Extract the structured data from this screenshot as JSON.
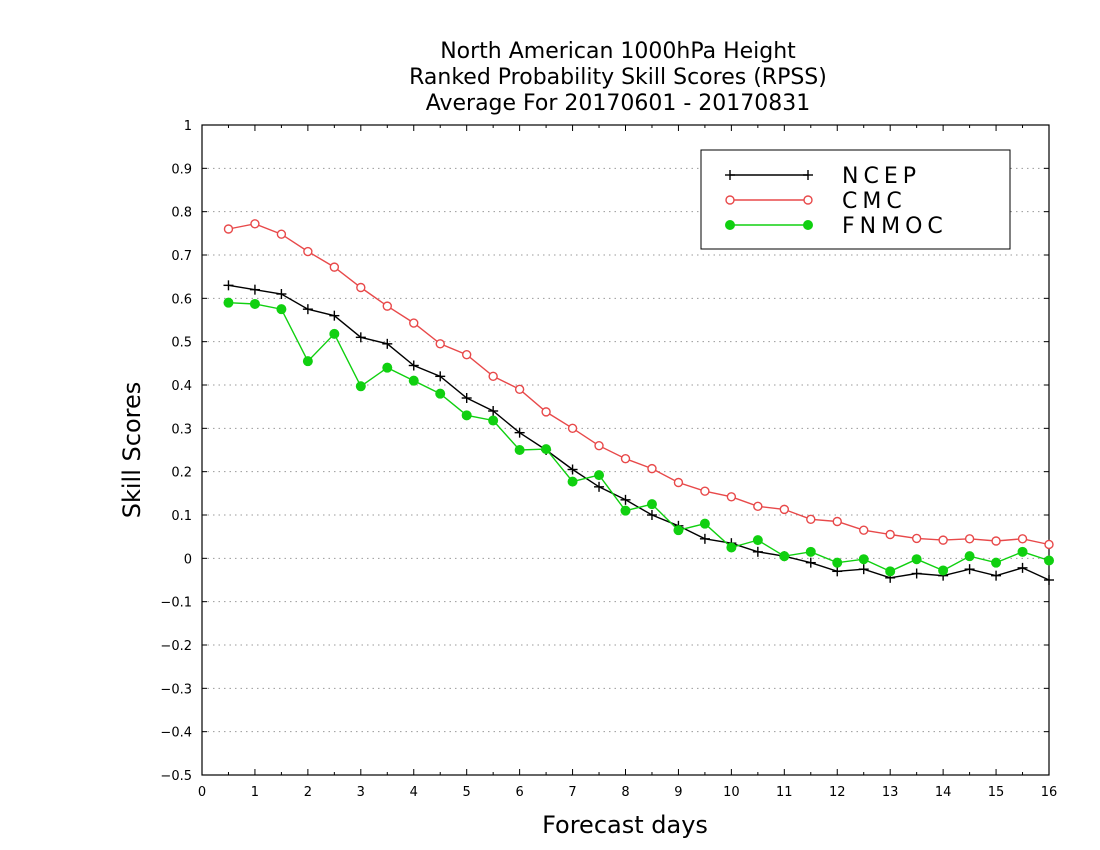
{
  "chart_data": {
    "type": "line",
    "title": [
      "North American 1000hPa Height",
      "Ranked Probability Skill Scores (RPSS)",
      "Average For 20170601 - 20170831"
    ],
    "xlabel": "Forecast days",
    "ylabel": "Skill Scores",
    "xlim": [
      0,
      16
    ],
    "ylim": [
      -0.5,
      1
    ],
    "xticks": [
      "0",
      "1",
      "2",
      "3",
      "4",
      "5",
      "6",
      "7",
      "8",
      "9",
      "10",
      "11",
      "12",
      "13",
      "14",
      "15",
      "16"
    ],
    "yticks": [
      "−0.5",
      "−0.4",
      "−0.3",
      "−0.2",
      "−0.1",
      "0",
      "0.1",
      "0.2",
      "0.3",
      "0.4",
      "0.5",
      "0.6",
      "0.7",
      "0.8",
      "0.9",
      "1"
    ],
    "grid": "horizontal dotted",
    "legend_position": "top-right",
    "x": [
      0.5,
      1,
      1.5,
      2,
      2.5,
      3,
      3.5,
      4,
      4.5,
      5,
      5.5,
      6,
      6.5,
      7,
      7.5,
      8,
      8.5,
      9,
      9.5,
      10,
      10.5,
      11,
      11.5,
      12,
      12.5,
      13,
      13.5,
      14,
      14.5,
      15,
      15.5,
      16
    ],
    "series": [
      {
        "name": "NCEP",
        "color": "#000000",
        "marker": "plus",
        "values": [
          0.63,
          0.62,
          0.61,
          0.575,
          0.56,
          0.51,
          0.495,
          0.445,
          0.42,
          0.37,
          0.34,
          0.29,
          0.25,
          0.205,
          0.165,
          0.135,
          0.1,
          0.075,
          0.045,
          0.035,
          0.015,
          0.005,
          -0.01,
          -0.03,
          -0.025,
          -0.045,
          -0.035,
          -0.04,
          -0.025,
          -0.04,
          -0.022,
          -0.05
        ]
      },
      {
        "name": "CMC",
        "color": "#e8494a",
        "marker": "open-circle",
        "values": [
          0.76,
          0.772,
          0.748,
          0.708,
          0.672,
          0.625,
          0.582,
          0.543,
          0.495,
          0.47,
          0.42,
          0.39,
          0.338,
          0.3,
          0.26,
          0.23,
          0.207,
          0.175,
          0.155,
          0.142,
          0.12,
          0.113,
          0.09,
          0.085,
          0.065,
          0.055,
          0.046,
          0.042,
          0.045,
          0.04,
          0.045,
          0.032
        ]
      },
      {
        "name": "FNMOC",
        "color": "#10d010",
        "marker": "filled-circle",
        "values": [
          0.59,
          0.587,
          0.575,
          0.455,
          0.518,
          0.397,
          0.44,
          0.41,
          0.38,
          0.33,
          0.318,
          0.25,
          0.252,
          0.177,
          0.192,
          0.11,
          0.125,
          0.065,
          0.08,
          0.025,
          0.042,
          0.005,
          0.015,
          -0.01,
          -0.002,
          -0.03,
          -0.002,
          -0.028,
          0.005,
          -0.01,
          0.015,
          -0.005
        ]
      }
    ]
  }
}
